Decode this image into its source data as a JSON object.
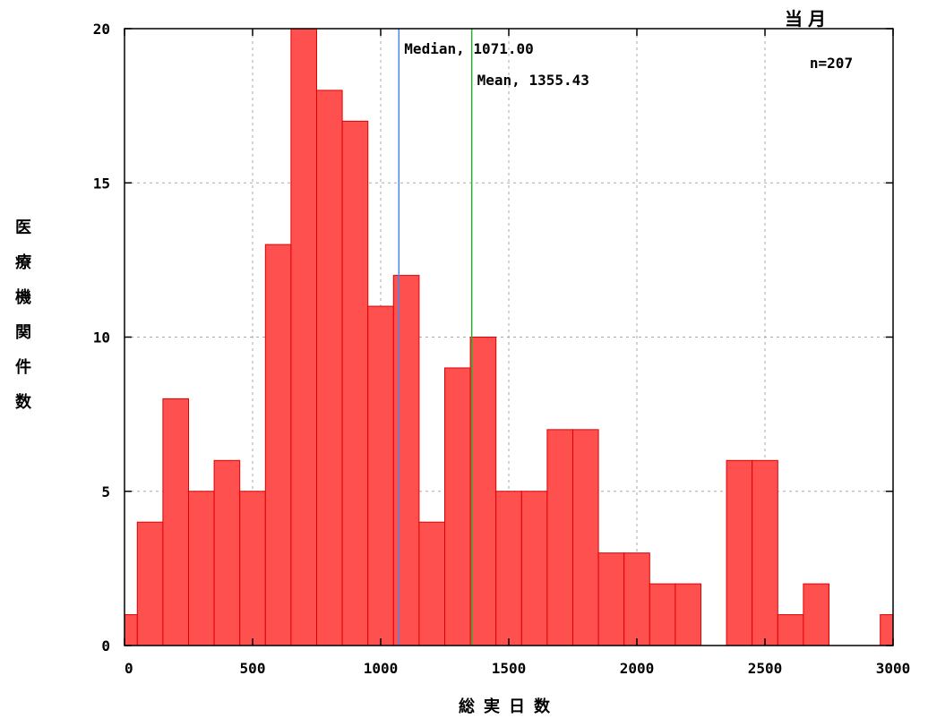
{
  "chart_data": {
    "type": "bar",
    "title": "当月",
    "xlabel": "総実日数",
    "ylabel": "医療機関件数",
    "xlim": [
      0,
      3000
    ],
    "ylim": [
      0,
      20
    ],
    "xticks": [
      0,
      500,
      1000,
      1500,
      2000,
      2500,
      3000
    ],
    "yticks": [
      0,
      5,
      10,
      15,
      20
    ],
    "grid": true,
    "bin_width": 100,
    "bins": [
      {
        "x0": 0,
        "x1": 50,
        "value": 1
      },
      {
        "x0": 50,
        "x1": 150,
        "value": 4
      },
      {
        "x0": 150,
        "x1": 250,
        "value": 8
      },
      {
        "x0": 250,
        "x1": 350,
        "value": 5
      },
      {
        "x0": 350,
        "x1": 450,
        "value": 6
      },
      {
        "x0": 450,
        "x1": 550,
        "value": 5
      },
      {
        "x0": 550,
        "x1": 650,
        "value": 13
      },
      {
        "x0": 650,
        "x1": 750,
        "value": 20
      },
      {
        "x0": 750,
        "x1": 850,
        "value": 18
      },
      {
        "x0": 850,
        "x1": 950,
        "value": 17
      },
      {
        "x0": 950,
        "x1": 1050,
        "value": 11
      },
      {
        "x0": 1050,
        "x1": 1150,
        "value": 12
      },
      {
        "x0": 1150,
        "x1": 1250,
        "value": 4
      },
      {
        "x0": 1250,
        "x1": 1350,
        "value": 9
      },
      {
        "x0": 1350,
        "x1": 1450,
        "value": 10
      },
      {
        "x0": 1450,
        "x1": 1550,
        "value": 5
      },
      {
        "x0": 1550,
        "x1": 1650,
        "value": 5
      },
      {
        "x0": 1650,
        "x1": 1750,
        "value": 7
      },
      {
        "x0": 1750,
        "x1": 1850,
        "value": 7
      },
      {
        "x0": 1850,
        "x1": 1950,
        "value": 3
      },
      {
        "x0": 1950,
        "x1": 2050,
        "value": 3
      },
      {
        "x0": 2050,
        "x1": 2150,
        "value": 2
      },
      {
        "x0": 2150,
        "x1": 2250,
        "value": 2
      },
      {
        "x0": 2350,
        "x1": 2450,
        "value": 6
      },
      {
        "x0": 2450,
        "x1": 2550,
        "value": 6
      },
      {
        "x0": 2550,
        "x1": 2650,
        "value": 1
      },
      {
        "x0": 2650,
        "x1": 2750,
        "value": 2
      },
      {
        "x0": 2950,
        "x1": 3000,
        "value": 1
      }
    ],
    "reference_lines": [
      {
        "label": "Median, 1071.00",
        "x": 1071.0,
        "color": "#4a86e8"
      },
      {
        "label": "Mean, 1355.43",
        "x": 1355.43,
        "color": "#33aa33"
      }
    ],
    "annotation": "n=207",
    "colors": {
      "bar_fill": "#ff5050",
      "bar_stroke": "#e00000",
      "axis": "#000000"
    }
  }
}
